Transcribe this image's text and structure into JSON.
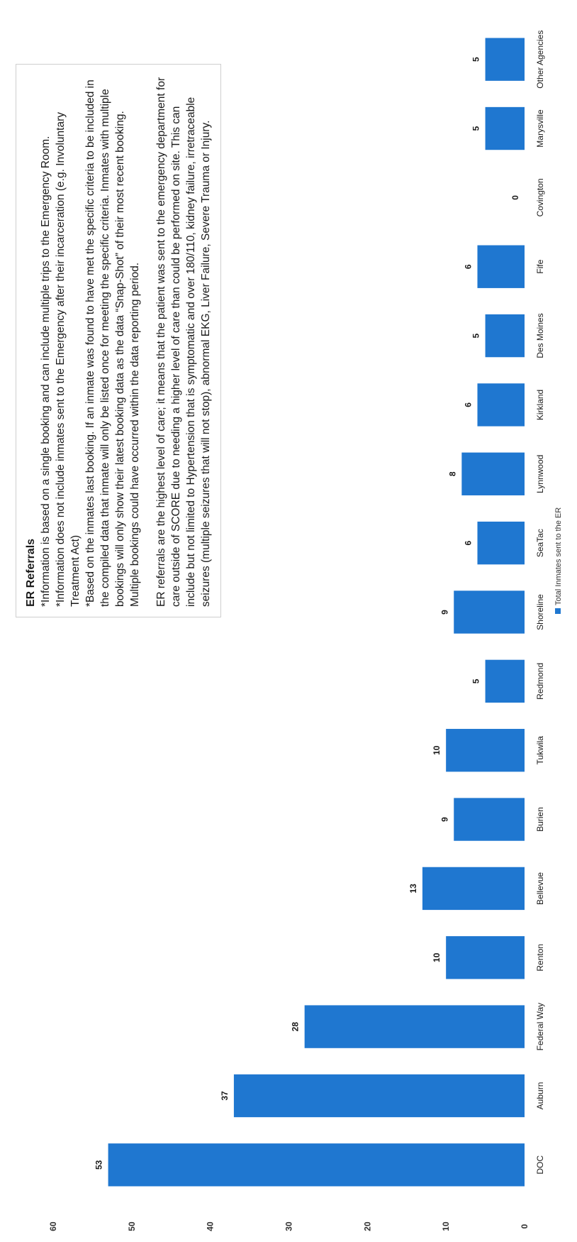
{
  "chart_data": {
    "type": "bar",
    "categories": [
      "DOC",
      "Auburn",
      "Federal Way",
      "Renton",
      "Bellevue",
      "Burien",
      "Tukwila",
      "Redmond",
      "Shoreline",
      "SeaTac",
      "Lynnwood",
      "Kirkland",
      "Des Moines",
      "Fife",
      "Covington",
      "Marysville",
      "Other Agencies"
    ],
    "series": [
      {
        "name": "Total Inmates sent to the ER",
        "values": [
          53,
          37,
          28,
          10,
          13,
          9,
          10,
          5,
          9,
          6,
          8,
          6,
          5,
          6,
          0,
          5,
          5
        ]
      }
    ],
    "ylim": [
      0,
      60
    ],
    "yticks": [
      0,
      10,
      20,
      30,
      40,
      50,
      60
    ],
    "bar_color": "#1f77d0",
    "legend_placement": "bottom",
    "grid": false
  },
  "note": {
    "title": "ER Referrals",
    "lines": [
      "*Information is based on a single booking and can include multiple trips to the Emergency Room.",
      "*Information does not include inmates sent to the Emergency after their incarceration (e.g. Involuntary Treatment Act)",
      "*Based on the inmates last booking.  If an inmate was found to have met the specific criteria to be included in the compiled data that inmate will only be listed once for meeting the specific criteria.  Inmates with multiple bookings will only show their latest booking data as the data “Snap-Shot” of their most recent booking.  Multiple bookings could have occurred within the data reporting period."
    ],
    "paragraph": "ER referrals are the highest level of care; it means that the patient was sent to the emergency department for care outside of SCORE due to needing a higher level of care than could be performed on site.  This can include but not limited to Hypertension that is symptomatic and over 180/110, kidney failure, irretraceable seizures (multiple seizures that will not stop), abnormal EKG, Liver Failure, Severe Trauma or Injury."
  }
}
